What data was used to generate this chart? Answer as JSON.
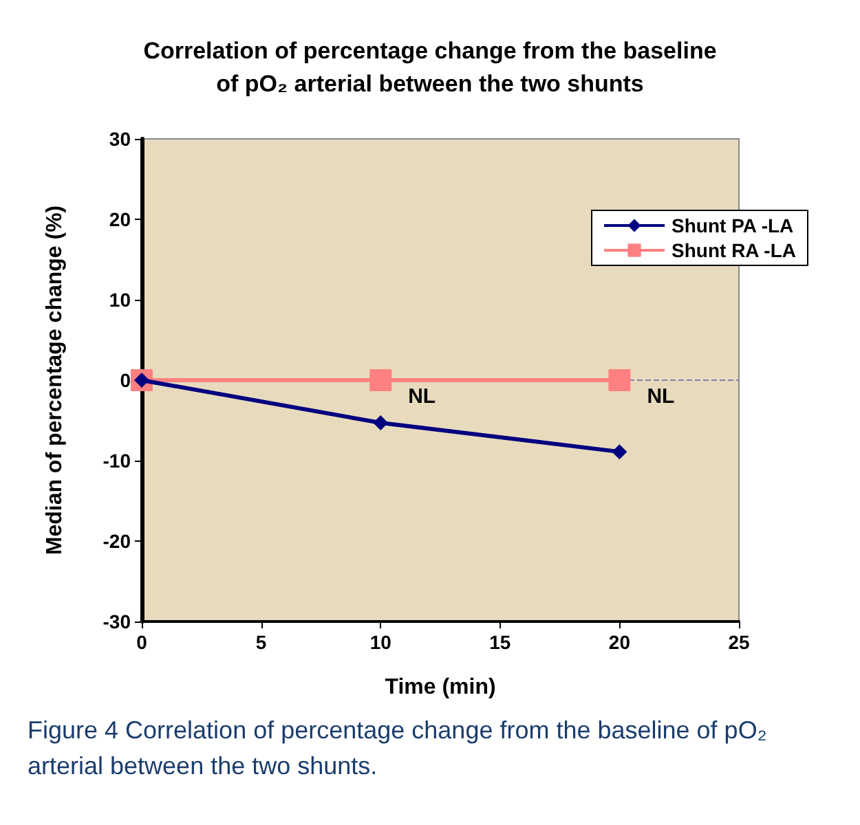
{
  "chart_data": {
    "type": "line",
    "title": "Correlation of percentage change from the baseline\nof pO₂ arterial between the two shunts",
    "xlabel": "Time (min)",
    "ylabel": "Median of percentage change (%)",
    "x": [
      0,
      10,
      20
    ],
    "series": [
      {
        "name": "Shunt PA -LA",
        "color": "#000080",
        "values": [
          0,
          -5.3,
          -8.9
        ],
        "marker": "diamond"
      },
      {
        "name": "Shunt RA -LA",
        "color": "#ff8080",
        "values": [
          0,
          0,
          0
        ],
        "marker": "square"
      }
    ],
    "xlim": [
      0,
      25
    ],
    "xticks": [
      0,
      5,
      10,
      15,
      20,
      25
    ],
    "ylim": [
      -30,
      30
    ],
    "yticks": [
      -30,
      -20,
      -10,
      0,
      10,
      20,
      30
    ],
    "grid": false,
    "legend": "top right",
    "ref_lines": [
      {
        "axis": "y",
        "value": 0,
        "label": null,
        "color": "#8080a0",
        "line_style": "dashed"
      }
    ],
    "annotations": [
      {
        "text": "NL",
        "x": 10,
        "y": 0
      },
      {
        "text": "NL",
        "x": 20,
        "y": 0
      },
      "Figure 4 Correlation of percentage change from the baseline of pO₂ arterial between the two shunts."
    ]
  }
}
